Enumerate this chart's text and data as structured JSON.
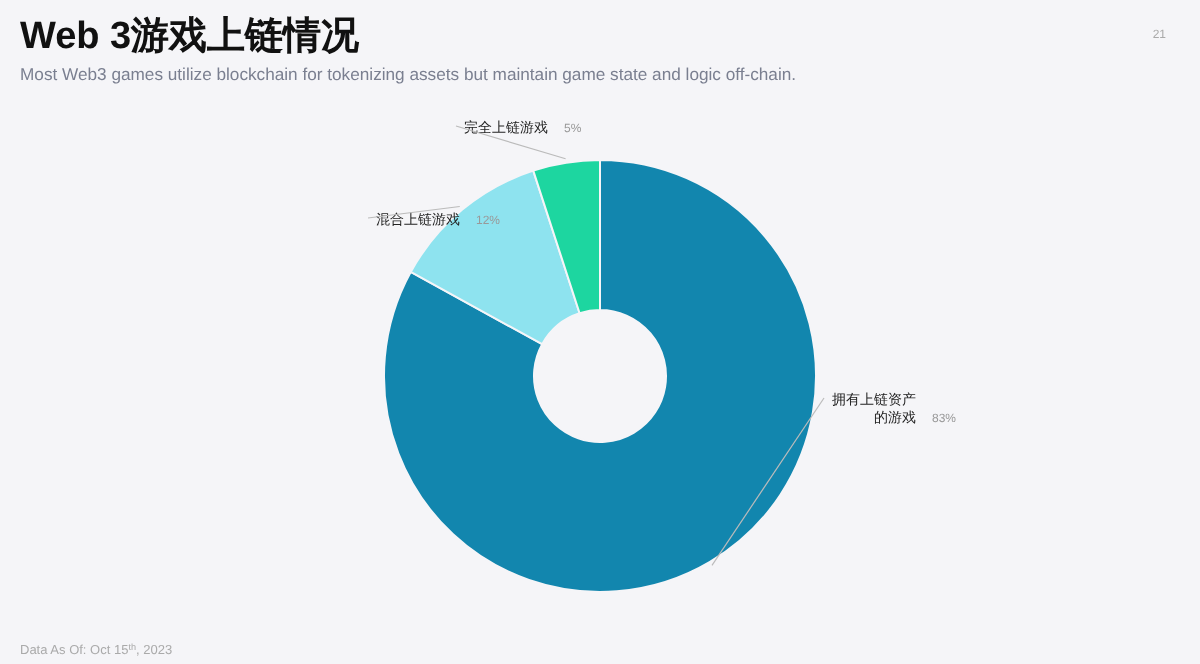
{
  "chart_data": {
    "type": "donut",
    "title": "Web 3游戏上链情况",
    "subtitle": "Most Web3 games utilize blockchain for tokenizing assets but maintain game state and logic off-chain.",
    "categories": [
      "拥有上链资产的游戏",
      "混合上链游戏",
      "完全上链游戏"
    ],
    "values": [
      83,
      12,
      5
    ],
    "colors": [
      "#1286ae",
      "#8ee3ef",
      "#1dd6a0"
    ],
    "value_labels": [
      "83%",
      "12%",
      "5%"
    ],
    "annotations": [
      "21",
      "Data As Of: Oct 15$^{th}$, 2023"
    ]
  }
}
